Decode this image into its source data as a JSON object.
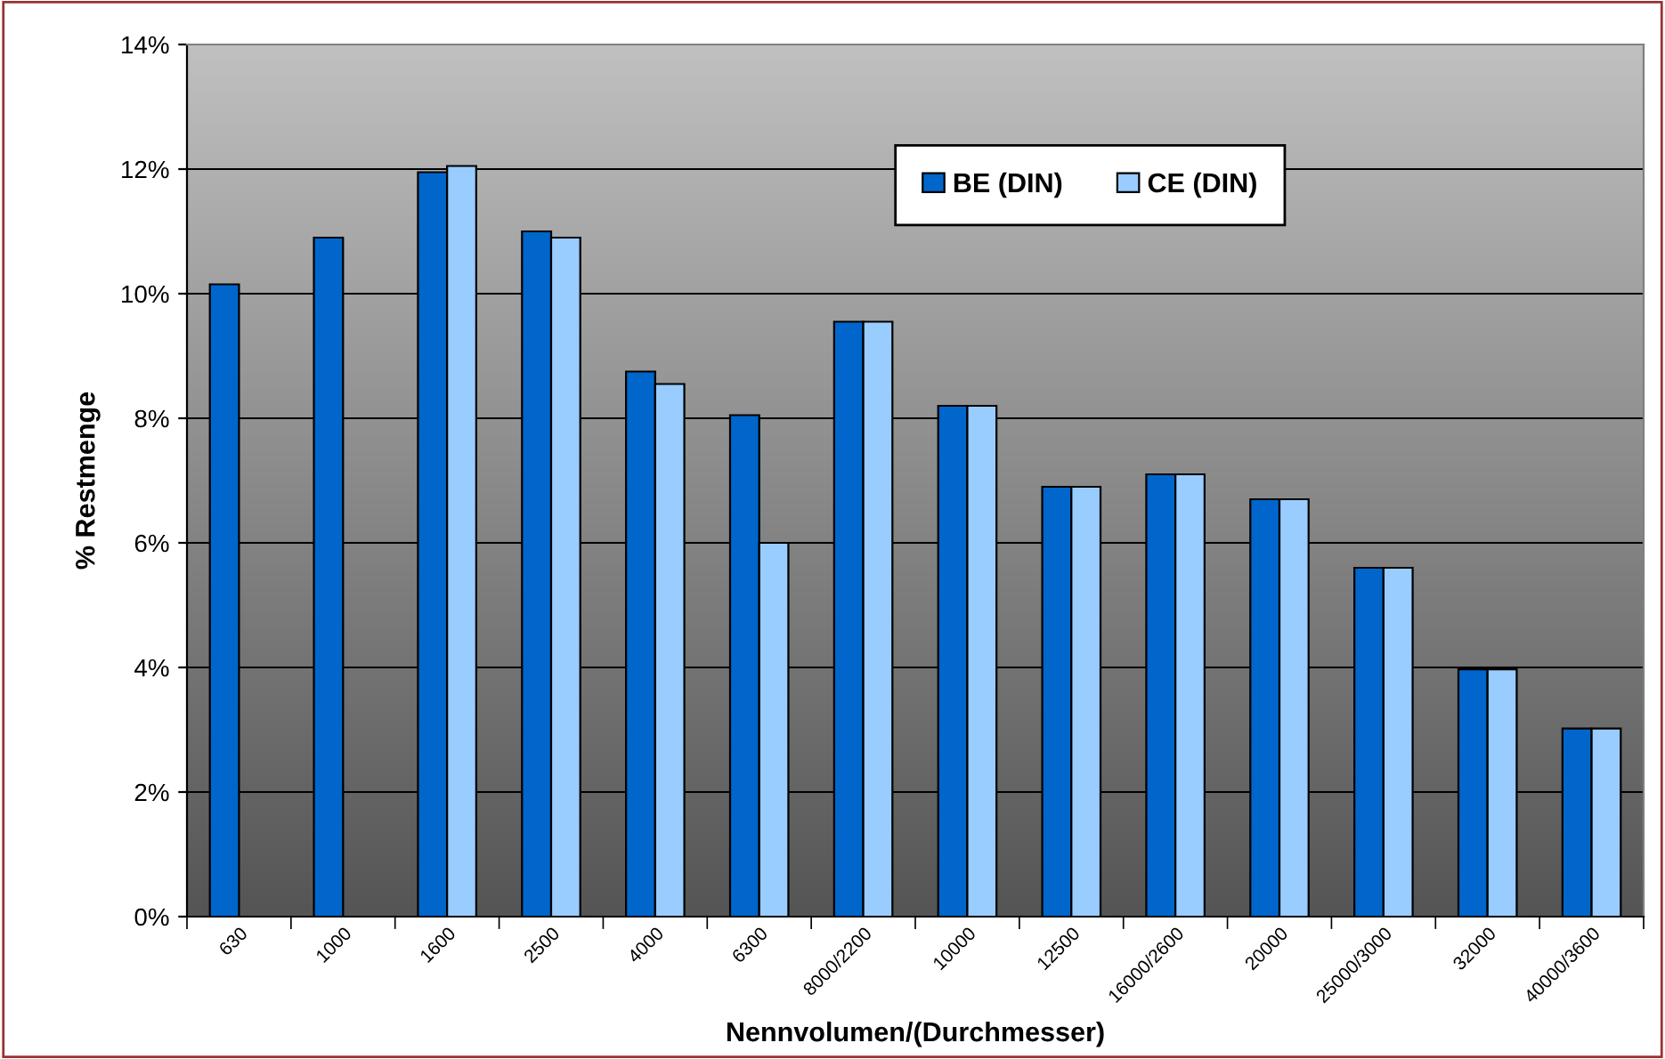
{
  "chart_data": {
    "type": "bar",
    "xlabel": "Nennvolumen/(Durchmesser)",
    "ylabel": "% Restmenge",
    "categories": [
      "630",
      "1000",
      "1600",
      "2500",
      "4000",
      "6300",
      "8000/2200",
      "10000",
      "12500",
      "16000/2600",
      "20000",
      "25000/3000",
      "32000",
      "40000/3600"
    ],
    "series": [
      {
        "name": "BE (DIN)",
        "color": "#0066cc",
        "values": [
          10.15,
          10.9,
          11.95,
          11.0,
          8.75,
          8.05,
          9.55,
          8.2,
          6.9,
          7.1,
          6.7,
          5.6,
          3.97,
          3.02
        ]
      },
      {
        "name": "CE (DIN)",
        "color": "#99ccff",
        "values": [
          null,
          null,
          12.05,
          10.9,
          8.55,
          6.0,
          9.55,
          8.2,
          6.9,
          7.1,
          6.7,
          5.6,
          3.97,
          3.02
        ]
      }
    ],
    "ylim": [
      0,
      14
    ],
    "yticks": [
      {
        "value": 0,
        "label": "0%"
      },
      {
        "value": 2,
        "label": "2%"
      },
      {
        "value": 4,
        "label": "4%"
      },
      {
        "value": 6,
        "label": "6%"
      },
      {
        "value": 8,
        "label": "8%"
      },
      {
        "value": 10,
        "label": "10%"
      },
      {
        "value": 12,
        "label": "12%"
      },
      {
        "value": 14,
        "label": "14%"
      }
    ],
    "grid": "y",
    "legend": "top"
  }
}
